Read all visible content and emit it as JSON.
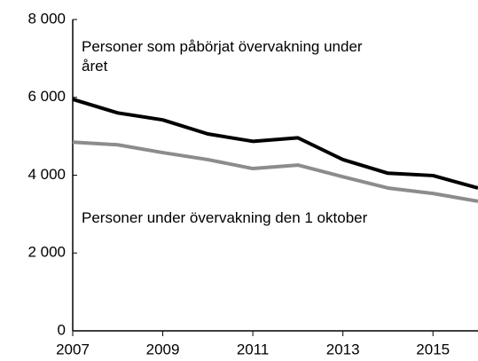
{
  "chart_data": {
    "type": "line",
    "x": [
      2007,
      2008,
      2009,
      2010,
      2011,
      2012,
      2013,
      2014,
      2015,
      2016
    ],
    "series": [
      {
        "name": "Personer som påbörjat övervakning under året",
        "color": "#000000",
        "values": [
          5950,
          5600,
          5420,
          5060,
          4870,
          4960,
          4400,
          4050,
          3990,
          3670
        ]
      },
      {
        "name": "Personer under övervakning den 1 oktober",
        "color": "#8c8c8c",
        "values": [
          4850,
          4780,
          4580,
          4400,
          4170,
          4260,
          3960,
          3670,
          3530,
          3330
        ]
      }
    ],
    "xlim": [
      2007,
      2016
    ],
    "xticks": [
      2007,
      2009,
      2011,
      2013,
      2015
    ],
    "ylim": [
      0,
      8000
    ],
    "yticks": [
      0,
      {
        "value": 2000,
        "label": "2 000"
      },
      {
        "value": 4000,
        "label": "4 000"
      },
      {
        "value": 6000,
        "label": "6 000"
      },
      {
        "value": 8000,
        "label": "8 000"
      }
    ],
    "grid": false
  }
}
